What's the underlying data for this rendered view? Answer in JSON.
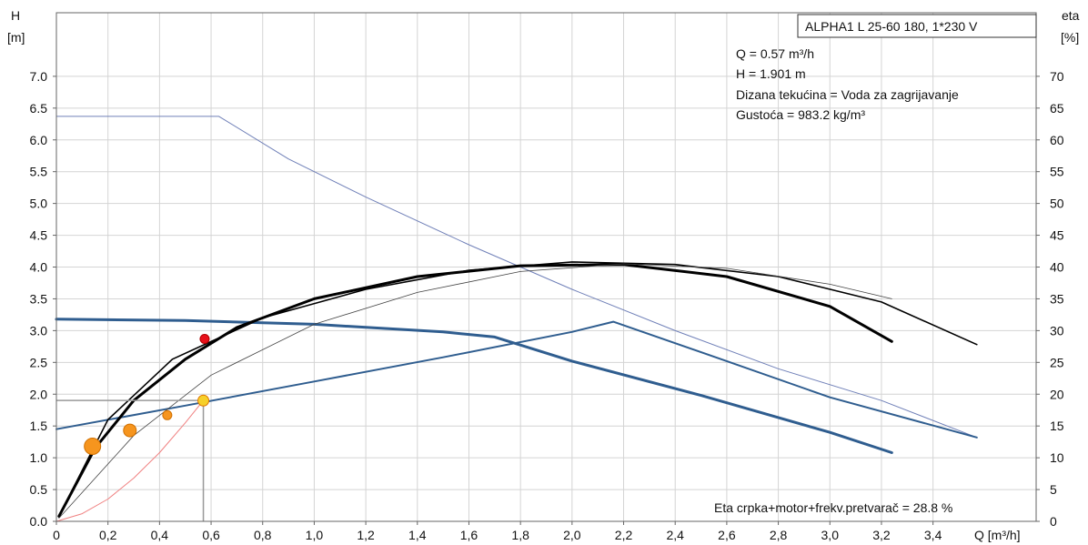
{
  "chart_data": {
    "type": "line",
    "title_box": "ALPHA1 L 25-60 180, 1*230 V",
    "y_left_label": [
      "H",
      "[m]"
    ],
    "y_right_label": [
      "eta",
      "[%]"
    ],
    "x_label": "Q [m³/h]",
    "xlim": [
      0,
      3.8
    ],
    "ylim_left": [
      0,
      8.0
    ],
    "ylim_right": [
      0,
      80
    ],
    "x_ticks": [
      0,
      0.2,
      0.4,
      0.6,
      0.8,
      1.0,
      1.2,
      1.4,
      1.6,
      1.8,
      2.0,
      2.2,
      2.4,
      2.6,
      2.8,
      3.0,
      3.2,
      3.4
    ],
    "x_tick_labels": [
      "0",
      "0,2",
      "0,4",
      "0,6",
      "0,8",
      "1,0",
      "1,2",
      "1,4",
      "1,6",
      "1,8",
      "2,0",
      "2,2",
      "2,4",
      "2,6",
      "2,8",
      "3,0",
      "3,2",
      "3,4"
    ],
    "y_left_ticks": [
      0,
      0.5,
      1.0,
      1.5,
      2.0,
      2.5,
      3.0,
      3.5,
      4.0,
      4.5,
      5.0,
      5.5,
      6.0,
      6.5,
      7.0
    ],
    "y_left_tick_labels": [
      "0.0",
      "0.5",
      "1.0",
      "1.5",
      "2.0",
      "2.5",
      "3.0",
      "3.5",
      "4.0",
      "4.5",
      "5.0",
      "5.5",
      "6.0",
      "6.5",
      "7.0"
    ],
    "y_right_ticks": [
      0,
      5,
      10,
      15,
      20,
      25,
      30,
      35,
      40,
      45,
      50,
      55,
      60,
      65,
      70
    ],
    "y_right_tick_labels": [
      "0",
      "5",
      "10",
      "15",
      "20",
      "25",
      "30",
      "35",
      "40",
      "45",
      "50",
      "55",
      "60",
      "65",
      "70"
    ],
    "info_lines": [
      "Q = 0.57 m³/h",
      "H = 1.901 m",
      "Dizana tekućina = Voda za zagrijavanje",
      "Gustoća = 983.2 kg/m³"
    ],
    "footer_text": "Eta crpka+motor+frekv.pretvarač = 28.8 %",
    "duty_point": {
      "q": 0.57,
      "h": 1.901
    },
    "series": [
      {
        "axis": "left",
        "color": "#7080b8",
        "width": 1,
        "points": [
          [
            0,
            6.37
          ],
          [
            0.6,
            6.37
          ],
          [
            0.63,
            6.37
          ],
          [
            0.9,
            5.7
          ],
          [
            1.2,
            5.1
          ],
          [
            1.6,
            4.35
          ],
          [
            2.0,
            3.65
          ],
          [
            2.4,
            3.0
          ],
          [
            2.8,
            2.4
          ],
          [
            3.2,
            1.9
          ],
          [
            3.57,
            1.32
          ]
        ]
      },
      {
        "axis": "left",
        "color": "#2f5d8f",
        "width": 2,
        "points": [
          [
            0,
            1.45
          ],
          [
            0.5,
            1.82
          ],
          [
            1.0,
            2.2
          ],
          [
            1.5,
            2.58
          ],
          [
            2.0,
            2.98
          ],
          [
            2.16,
            3.14
          ],
          [
            2.6,
            2.52
          ],
          [
            3.0,
            1.95
          ],
          [
            3.57,
            1.32
          ]
        ]
      },
      {
        "axis": "left",
        "color": "#2f5d8f",
        "width": 3,
        "points": [
          [
            0,
            3.18
          ],
          [
            0.5,
            3.16
          ],
          [
            1.0,
            3.1
          ],
          [
            1.5,
            2.98
          ],
          [
            1.7,
            2.9
          ],
          [
            2.0,
            2.52
          ],
          [
            2.5,
            1.98
          ],
          [
            3.0,
            1.4
          ],
          [
            3.24,
            1.08
          ]
        ]
      },
      {
        "axis": "right",
        "color": "#000000",
        "width": 3,
        "points": [
          [
            0.01,
            0.8
          ],
          [
            0.15,
            11.5
          ],
          [
            0.3,
            19.0
          ],
          [
            0.5,
            25.5
          ],
          [
            0.7,
            30.5
          ],
          [
            1.0,
            35.0
          ],
          [
            1.4,
            38.5
          ],
          [
            1.8,
            40.2
          ],
          [
            2.2,
            40.4
          ],
          [
            2.6,
            38.5
          ],
          [
            3.0,
            33.8
          ],
          [
            3.24,
            28.3
          ]
        ]
      },
      {
        "axis": "right",
        "color": "#000000",
        "width": 1.6,
        "points": [
          [
            0.01,
            0.8
          ],
          [
            0.2,
            16.0
          ],
          [
            0.45,
            25.5
          ],
          [
            0.8,
            32.0
          ],
          [
            1.2,
            36.5
          ],
          [
            1.6,
            39.5
          ],
          [
            2.0,
            40.8
          ],
          [
            2.4,
            40.4
          ],
          [
            2.8,
            38.5
          ],
          [
            3.2,
            34.5
          ],
          [
            3.57,
            27.8
          ]
        ]
      },
      {
        "axis": "right",
        "color": "#444444",
        "width": 0.8,
        "points": [
          [
            0.01,
            0.5
          ],
          [
            0.3,
            13.5
          ],
          [
            0.6,
            23.0
          ],
          [
            1.0,
            31.0
          ],
          [
            1.4,
            36.0
          ],
          [
            1.8,
            39.3
          ],
          [
            2.2,
            40.5
          ],
          [
            2.6,
            39.8
          ],
          [
            3.0,
            37.3
          ],
          [
            3.24,
            35.0
          ]
        ]
      },
      {
        "axis": "right",
        "color": "#f08080",
        "width": 1,
        "points": [
          [
            0.0,
            0.0
          ],
          [
            0.1,
            1.2
          ],
          [
            0.2,
            3.5
          ],
          [
            0.3,
            6.8
          ],
          [
            0.4,
            10.8
          ],
          [
            0.5,
            15.5
          ],
          [
            0.57,
            19.0
          ]
        ]
      }
    ],
    "markers": [
      {
        "axis": "left",
        "q": 0.575,
        "h": 2.87,
        "r": 5,
        "fill": "#e8101a",
        "stroke": "#b00000"
      },
      {
        "axis": "left",
        "q": 0.14,
        "h": 1.18,
        "r": 9,
        "fill": "#f6951e",
        "stroke": "#d07000"
      },
      {
        "axis": "left",
        "q": 0.285,
        "h": 1.43,
        "r": 7,
        "fill": "#f6951e",
        "stroke": "#d07000"
      },
      {
        "axis": "left",
        "q": 0.43,
        "h": 1.67,
        "r": 5,
        "fill": "#f6951e",
        "stroke": "#d07000"
      },
      {
        "axis": "left",
        "q": 0.57,
        "h": 1.9,
        "r": 6,
        "fill": "#f6d02a",
        "stroke": "#e07800"
      }
    ]
  }
}
